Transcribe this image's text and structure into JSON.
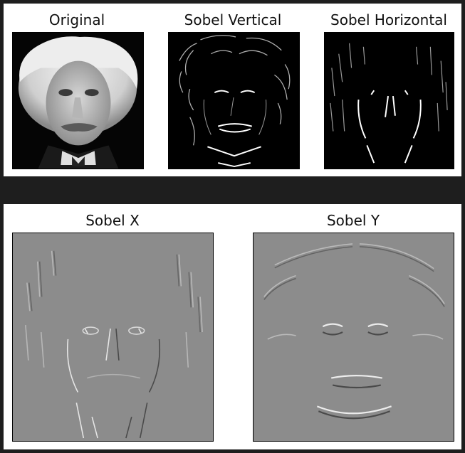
{
  "figure_top": {
    "panels": [
      {
        "title": "Original",
        "style": "photo"
      },
      {
        "title": "Sobel Vertical",
        "style": "edge-dark"
      },
      {
        "title": "Sobel Horizontal",
        "style": "edge-dark"
      }
    ]
  },
  "figure_bottom": {
    "panels": [
      {
        "title": "Sobel X",
        "style": "relief-gray"
      },
      {
        "title": "Sobel Y",
        "style": "relief-gray"
      }
    ]
  },
  "colors": {
    "page_background": "#1e1e1e",
    "figure_background": "#ffffff",
    "relief_gray": "#8c8c8c"
  }
}
